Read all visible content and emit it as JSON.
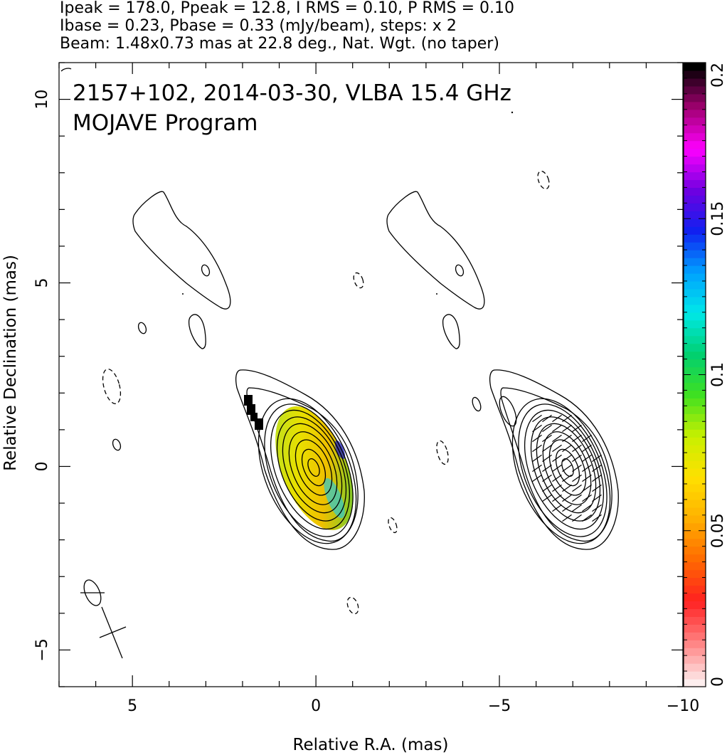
{
  "header": {
    "line1": "Ipeak = 178.0, Ppeak = 12.8, I RMS = 0.10, P RMS = 0.10",
    "line2": "Ibase = 0.23, Pbase = 0.33 (mJy/beam), steps: x 2",
    "line3": "Beam: 1.48x0.73 mas at 22.8 deg., Nat. Wgt. (no taper)"
  },
  "chart_data": {
    "type": "contour",
    "title": "2157+102, 2014-03-30, VLBA 15.4 GHz",
    "subtitle": "MOJAVE Program",
    "xlabel": "Relative R.A. (mas)",
    "ylabel": "Relative Declination (mas)",
    "xlim": [
      7,
      -10
    ],
    "ylim": [
      -6,
      11
    ],
    "x_ticks": [
      "5",
      "0",
      "−5",
      "−10"
    ],
    "y_ticks": [
      "−5",
      "0",
      "5",
      "10"
    ],
    "x_tick_values": [
      5,
      0,
      -5,
      -10
    ],
    "y_tick_values": [
      -5,
      0,
      5,
      10
    ],
    "left_panel": {
      "description_offset_mas": 0,
      "contour_levels_mJy_per_beam": [
        0.23,
        0.46,
        0.92,
        1.84,
        3.68,
        7.36,
        14.72,
        29.44,
        58.88,
        117.76
      ],
      "core": {
        "x": 0,
        "y": 0
      }
    },
    "right_panel": {
      "offset_mas": -7,
      "core": {
        "x": -7,
        "y": 0
      }
    },
    "beam": {
      "major_mas": 1.48,
      "minor_mas": 0.73,
      "pa_deg": 22.8,
      "position": {
        "x": 6,
        "y": -3.5
      }
    },
    "colorbar": {
      "label_min": "0",
      "label_max": "0.2",
      "tick_labels": [
        "0",
        "0.05",
        "0.1",
        "0.15",
        "0.2"
      ],
      "tick_values": [
        0,
        0.05,
        0.1,
        0.15,
        0.2
      ],
      "colors": [
        "#fdeeee",
        "#ff8080",
        "#ff2020",
        "#ff6a00",
        "#ffb000",
        "#ffe000",
        "#c8f000",
        "#40e020",
        "#00d070",
        "#00e8e8",
        "#00a0ff",
        "#1020f0",
        "#7000e0",
        "#ff00ff",
        "#a00070",
        "#000000"
      ]
    }
  }
}
